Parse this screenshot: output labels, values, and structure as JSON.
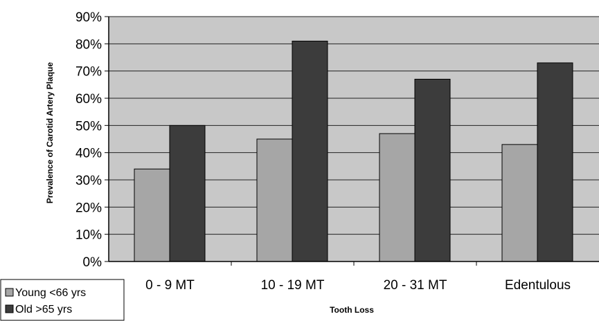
{
  "chart_data": {
    "type": "bar",
    "title": "",
    "xlabel": "Tooth Loss",
    "ylabel": "Prevalence of Carotid Artery Plaque",
    "categories": [
      "0 - 9 MT",
      "10 - 19 MT",
      "20 - 31 MT",
      "Edentulous"
    ],
    "series": [
      {
        "name": "Young <66 yrs",
        "values": [
          34,
          45,
          47,
          43
        ],
        "color": "#a6a6a6"
      },
      {
        "name": "Old >65 yrs",
        "values": [
          50,
          81,
          67,
          73
        ],
        "color": "#3c3c3c"
      }
    ],
    "ylim": [
      0,
      90
    ],
    "yticks": [
      "0%",
      "10%",
      "20%",
      "30%",
      "40%",
      "50%",
      "60%",
      "70%",
      "80%",
      "90%"
    ],
    "grid": true,
    "legend_position": "bottom-left",
    "plot_background": "#c8c8c8"
  }
}
